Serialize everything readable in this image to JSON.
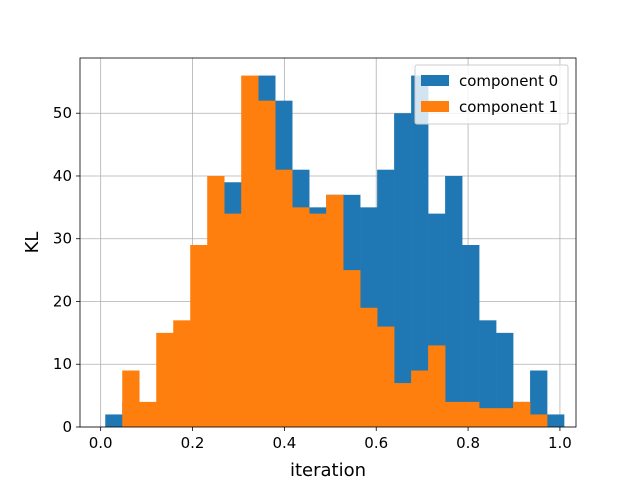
{
  "chart_data": {
    "type": "bar",
    "subtype": "overlapping-histogram",
    "xlabel": "iteration",
    "ylabel": "KL",
    "xlim": [
      -0.045,
      1.035
    ],
    "ylim": [
      0,
      58.8
    ],
    "xticks": [
      0.0,
      0.2,
      0.4,
      0.6,
      0.8,
      1.0
    ],
    "xtick_labels": [
      "0.0",
      "0.2",
      "0.4",
      "0.6",
      "0.8",
      "1.0"
    ],
    "yticks": [
      0,
      10,
      20,
      30,
      40,
      50
    ],
    "ytick_labels": [
      "0",
      "10",
      "20",
      "30",
      "40",
      "50"
    ],
    "grid": true,
    "legend_position": "top-right",
    "bin_edges": [
      0.01,
      0.047,
      0.084,
      0.121,
      0.158,
      0.195,
      0.232,
      0.269,
      0.306,
      0.343,
      0.38,
      0.417,
      0.454,
      0.491,
      0.528,
      0.565,
      0.602,
      0.639,
      0.676,
      0.713,
      0.75,
      0.787,
      0.824,
      0.861,
      0.898,
      0.935,
      0.972,
      1.009
    ],
    "series": [
      {
        "name": "component 0",
        "color": "#1f77b4",
        "values": [
          2,
          4,
          3,
          4,
          14,
          17,
          29,
          39,
          34,
          56,
          52,
          41,
          35,
          37,
          37,
          35,
          41,
          50,
          56,
          34,
          40,
          29,
          17,
          15,
          4,
          9,
          2
        ]
      },
      {
        "name": "component 1",
        "color": "#ff7f0e",
        "values": [
          0,
          9,
          4,
          15,
          17,
          29,
          40,
          34,
          56,
          52,
          41,
          35,
          34,
          37,
          25,
          19,
          16,
          7,
          9,
          13,
          4,
          4,
          3,
          3,
          4,
          2,
          0
        ]
      }
    ]
  }
}
